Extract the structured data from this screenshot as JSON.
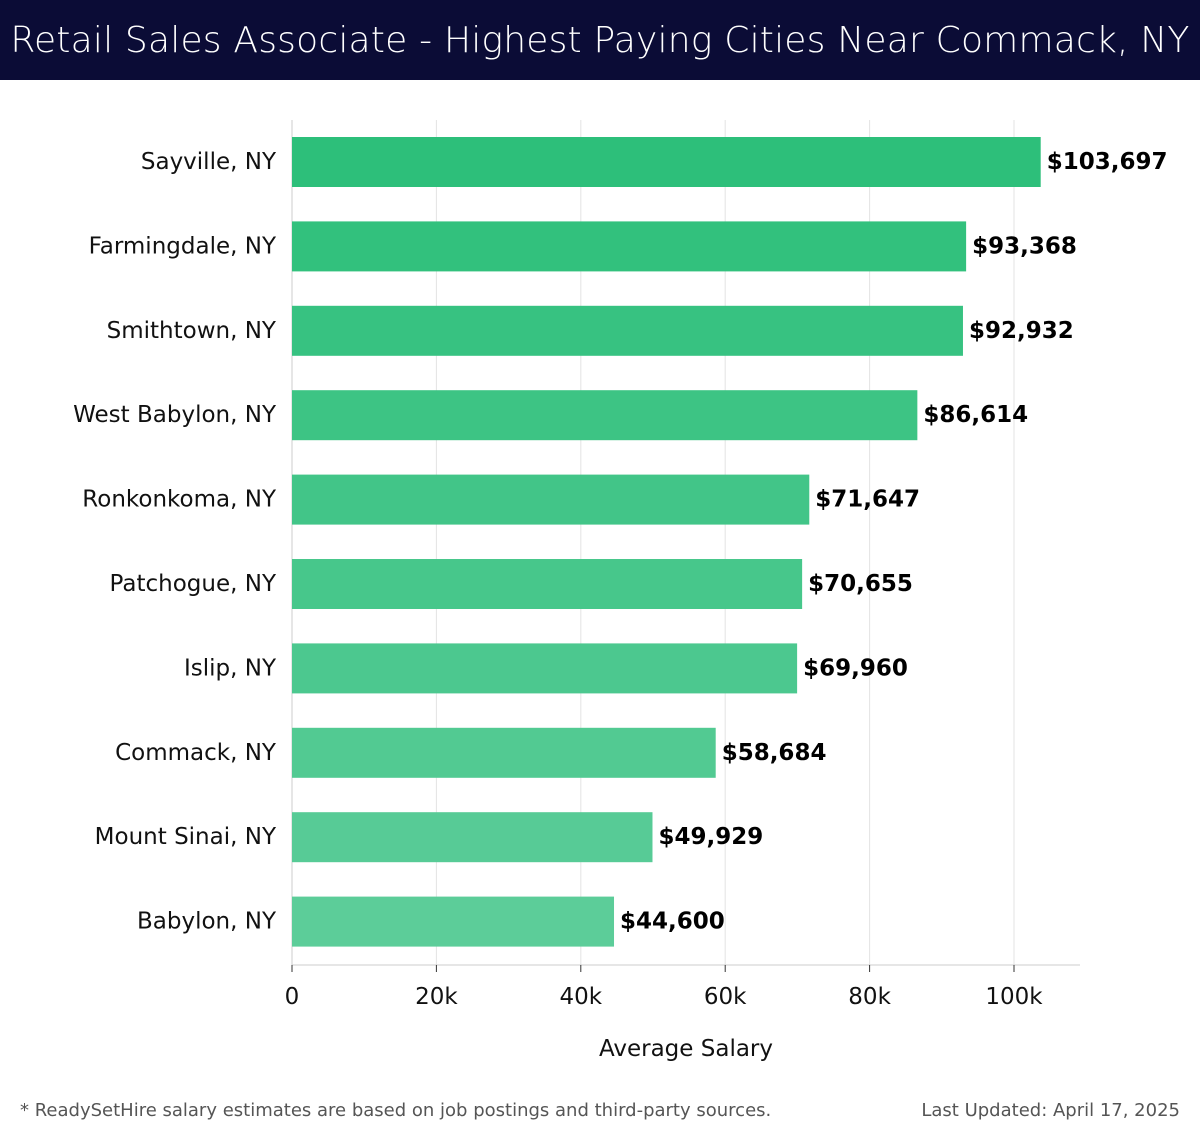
{
  "header": {
    "title": "Retail Sales Associate - Highest Paying Cities Near Commack, NY"
  },
  "chart_data": {
    "type": "bar",
    "orientation": "horizontal",
    "title": "Retail Sales Associate - Highest Paying Cities Near Commack, NY",
    "xlabel": "Average Salary",
    "ylabel": "",
    "xlim": [
      0,
      109000
    ],
    "xticks": [
      0,
      20000,
      40000,
      60000,
      80000,
      100000
    ],
    "xtick_labels": [
      "0",
      "20k",
      "40k",
      "60k",
      "80k",
      "100k"
    ],
    "grid": true,
    "categories": [
      "Sayville, NY",
      "Farmingdale, NY",
      "Smithtown, NY",
      "West Babylon, NY",
      "Ronkonkoma, NY",
      "Patchogue, NY",
      "Islip, NY",
      "Commack, NY",
      "Mount Sinai, NY",
      "Babylon, NY"
    ],
    "values": [
      103697,
      93368,
      92932,
      86614,
      71647,
      70655,
      69960,
      58684,
      49929,
      44600
    ],
    "value_labels": [
      "$103,697",
      "$93,368",
      "$92,932",
      "$86,614",
      "$71,647",
      "$70,655",
      "$69,960",
      "$58,684",
      "$49,929",
      "$44,600"
    ],
    "colors": {
      "bar_start": "#2dbf7a",
      "bar_end": "#5ccd99",
      "gridline": "#e3e3e3",
      "axis": "#cccccc"
    }
  },
  "footer": {
    "note": "* ReadySetHire salary estimates are based on job postings and third-party sources.",
    "updated": "Last Updated: April 17, 2025"
  },
  "colors": {
    "header_bg": "#0b0c36",
    "header_text": "#ffffff"
  }
}
